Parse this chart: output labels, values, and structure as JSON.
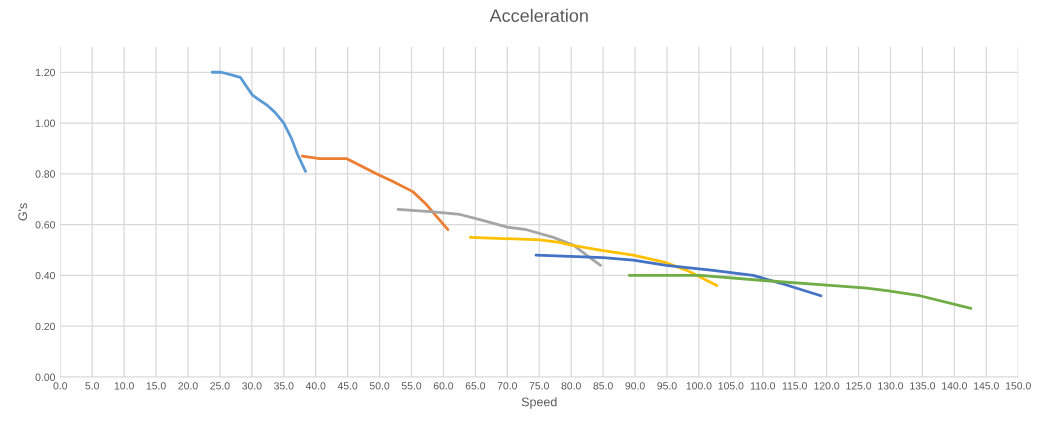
{
  "chart_data": {
    "type": "line",
    "title": "Acceleration",
    "xlabel": "Speed",
    "ylabel": "G's",
    "xlim": [
      0,
      150
    ],
    "ylim": [
      0,
      1.3
    ],
    "xticks": [
      {
        "value": 0,
        "label": "0.0"
      },
      {
        "value": 5,
        "label": "5.0"
      },
      {
        "value": 10,
        "label": "10.0"
      },
      {
        "value": 15,
        "label": "15.0"
      },
      {
        "value": 20,
        "label": "20.0"
      },
      {
        "value": 25,
        "label": "25.0"
      },
      {
        "value": 30,
        "label": "30.0"
      },
      {
        "value": 35,
        "label": "35.0"
      },
      {
        "value": 40,
        "label": "40.0"
      },
      {
        "value": 45,
        "label": "45.0"
      },
      {
        "value": 50,
        "label": "50.0"
      },
      {
        "value": 55,
        "label": "55.0"
      },
      {
        "value": 60,
        "label": "60.0"
      },
      {
        "value": 65,
        "label": "65.0"
      },
      {
        "value": 70,
        "label": "70.0"
      },
      {
        "value": 75,
        "label": "75.0"
      },
      {
        "value": 80,
        "label": "80.0"
      },
      {
        "value": 85,
        "label": "85.0"
      },
      {
        "value": 90,
        "label": "90.0"
      },
      {
        "value": 95,
        "label": "95.0"
      },
      {
        "value": 100,
        "label": "100.0"
      },
      {
        "value": 105,
        "label": "105.0"
      },
      {
        "value": 110,
        "label": "110.0"
      },
      {
        "value": 115,
        "label": "115.0"
      },
      {
        "value": 120,
        "label": "120.0"
      },
      {
        "value": 125,
        "label": "125.0"
      },
      {
        "value": 130,
        "label": "130.0"
      },
      {
        "value": 135,
        "label": "135.0"
      },
      {
        "value": 140,
        "label": "140.0"
      },
      {
        "value": 145,
        "label": "145.0"
      },
      {
        "value": 150,
        "label": "150.0"
      }
    ],
    "yticks": [
      {
        "value": 0,
        "label": "0.00"
      },
      {
        "value": 0.2,
        "label": "0.20"
      },
      {
        "value": 0.4,
        "label": "0.40"
      },
      {
        "value": 0.6,
        "label": "0.60"
      },
      {
        "value": 0.8,
        "label": "0.80"
      },
      {
        "value": 1.0,
        "label": "1.00"
      },
      {
        "value": 1.2,
        "label": "1.20"
      }
    ],
    "grid": true,
    "legend": false,
    "marker": "none",
    "line_style": "solid",
    "series": [
      {
        "color": "#5b9bd5",
        "x": [
          23.8,
          25.2,
          26.8,
          28.2,
          29.0,
          30.1,
          31.2,
          32.4,
          33.7,
          35.0,
          36.2,
          37.1,
          38.4
        ],
        "values": [
          1.2,
          1.2,
          1.19,
          1.18,
          1.15,
          1.11,
          1.09,
          1.07,
          1.04,
          1.0,
          0.94,
          0.88,
          0.81
        ]
      },
      {
        "color": "#ed7d31",
        "x": [
          37.9,
          40.6,
          44.8,
          47.2,
          49.5,
          52.1,
          55.2,
          57.3,
          60.7
        ],
        "values": [
          0.87,
          0.86,
          0.86,
          0.83,
          0.8,
          0.77,
          0.73,
          0.68,
          0.58
        ]
      },
      {
        "color": "#a5a5a5",
        "x": [
          52.9,
          58.4,
          62.6,
          65.7,
          70.0,
          73.0,
          77.2,
          80.3,
          82.4,
          84.6
        ],
        "values": [
          0.66,
          0.65,
          0.64,
          0.62,
          0.59,
          0.58,
          0.55,
          0.52,
          0.48,
          0.44
        ]
      },
      {
        "color": "#ffc000",
        "x": [
          64.2,
          75.1,
          78.2,
          79.8,
          84.5,
          89.7,
          94.9,
          98.1,
          102.8
        ],
        "values": [
          0.55,
          0.54,
          0.53,
          0.52,
          0.5,
          0.48,
          0.45,
          0.42,
          0.36
        ]
      },
      {
        "color": "#4472c4",
        "x": [
          74.5,
          85.0,
          89.7,
          94.9,
          102.2,
          108.5,
          112.7,
          119.1
        ],
        "values": [
          0.48,
          0.47,
          0.46,
          0.44,
          0.42,
          0.4,
          0.37,
          0.32
        ]
      },
      {
        "color": "#70ad47",
        "x": [
          89.1,
          100.2,
          110.1,
          121.1,
          126.3,
          129.4,
          134.6,
          142.6
        ],
        "values": [
          0.4,
          0.4,
          0.38,
          0.36,
          0.35,
          0.34,
          0.32,
          0.27
        ]
      }
    ]
  }
}
